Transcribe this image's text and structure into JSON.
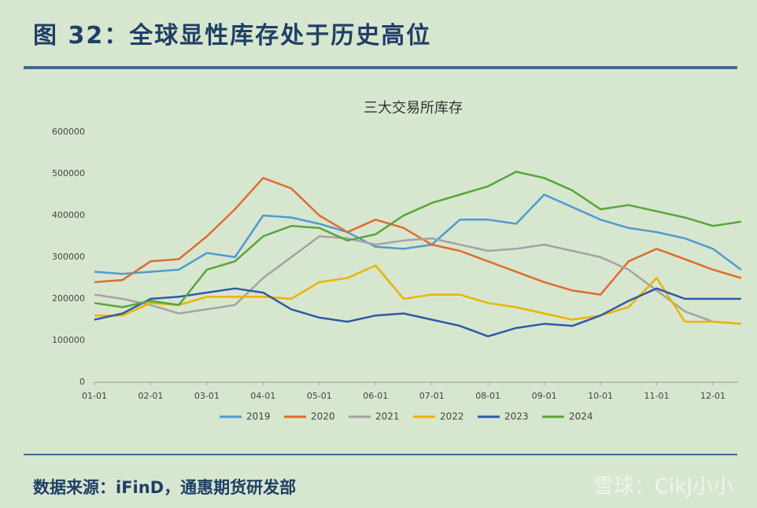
{
  "title": "图 32：全球显性库存处于历史高位",
  "chart_data": {
    "type": "line",
    "title": "三大交易所库存",
    "categories": [
      "01-01",
      null,
      "02-01",
      null,
      "03-01",
      null,
      "04-01",
      null,
      "05-01",
      null,
      "06-01",
      null,
      "07-01",
      null,
      "08-01",
      null,
      "09-01",
      null,
      "10-01",
      null,
      "11-01",
      null,
      "12-01",
      null
    ],
    "series": [
      {
        "name": "2019",
        "color": "#4e9bcf",
        "values": [
          265000,
          260000,
          265000,
          270000,
          310000,
          300000,
          400000,
          395000,
          380000,
          360000,
          325000,
          320000,
          330000,
          390000,
          390000,
          380000,
          450000,
          420000,
          390000,
          370000,
          360000,
          345000,
          320000,
          270000
        ]
      },
      {
        "name": "2020",
        "color": "#e06c2c",
        "values": [
          240000,
          245000,
          290000,
          295000,
          350000,
          415000,
          490000,
          465000,
          400000,
          360000,
          390000,
          370000,
          330000,
          315000,
          290000,
          265000,
          240000,
          220000,
          210000,
          290000,
          320000,
          295000,
          270000,
          250000
        ]
      },
      {
        "name": "2021",
        "color": "#a3a3a3",
        "values": [
          210000,
          200000,
          185000,
          165000,
          175000,
          185000,
          250000,
          300000,
          350000,
          345000,
          330000,
          340000,
          345000,
          330000,
          315000,
          320000,
          330000,
          315000,
          300000,
          270000,
          220000,
          170000,
          145000,
          140000
        ]
      },
      {
        "name": "2022",
        "color": "#eab400",
        "values": [
          160000,
          160000,
          190000,
          185000,
          205000,
          205000,
          205000,
          200000,
          240000,
          250000,
          280000,
          200000,
          210000,
          210000,
          190000,
          180000,
          165000,
          150000,
          160000,
          180000,
          250000,
          145000,
          145000,
          140000
        ]
      },
      {
        "name": "2023",
        "color": "#2f5aa6",
        "values": [
          150000,
          165000,
          200000,
          205000,
          215000,
          225000,
          215000,
          175000,
          155000,
          145000,
          160000,
          165000,
          150000,
          135000,
          110000,
          130000,
          140000,
          135000,
          160000,
          195000,
          225000,
          200000,
          200000,
          200000
        ]
      },
      {
        "name": "2024",
        "color": "#59a53a",
        "values": [
          190000,
          180000,
          195000,
          185000,
          270000,
          290000,
          350000,
          375000,
          370000,
          340000,
          355000,
          400000,
          430000,
          450000,
          470000,
          505000,
          490000,
          460000,
          415000,
          425000,
          410000,
          395000,
          375000,
          385000
        ]
      }
    ],
    "ylim": [
      0,
      600000
    ],
    "yticks": [
      0,
      100000,
      200000,
      300000,
      400000,
      500000,
      600000
    ],
    "grid": false,
    "legend": "bottom"
  },
  "source": "数据来源：iFinD，通惠期货研发部",
  "watermark": "雪球：CikJ小小"
}
